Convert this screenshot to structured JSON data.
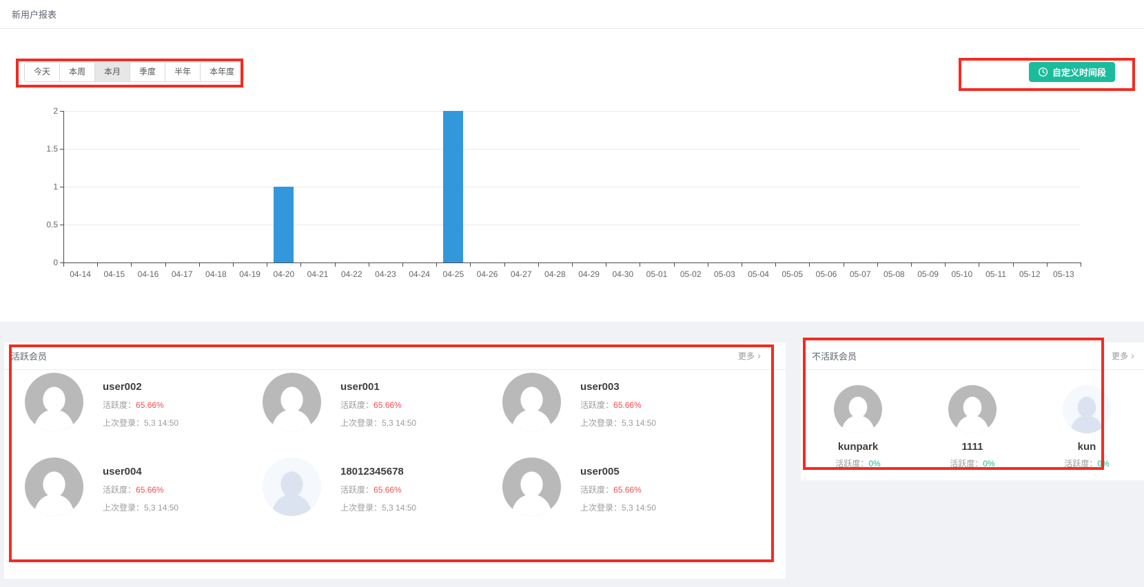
{
  "page": {
    "title": "新用户报表"
  },
  "annotation_color": "#f42b20",
  "icons": {
    "chevron_right": "›"
  },
  "avatar_colors": {
    "gray_bg": "#b9b9b9",
    "gray_fg": "#ffffff",
    "light_bg": "#f5f8fc",
    "light_fg": "#dce3f0"
  },
  "filters": {
    "tabs": [
      {
        "label": "今天",
        "active": false
      },
      {
        "label": "本周",
        "active": false
      },
      {
        "label": "本月",
        "active": true
      },
      {
        "label": "季度",
        "active": false
      },
      {
        "label": "半年",
        "active": false
      },
      {
        "label": "本年度",
        "active": false
      }
    ],
    "custom_range_button": {
      "label": "自定义时间段",
      "icon": "clock-icon",
      "color": "#1abc9c"
    }
  },
  "chart_data": {
    "type": "bar",
    "title": "",
    "categories": [
      "04-14",
      "04-15",
      "04-16",
      "04-17",
      "04-18",
      "04-19",
      "04-20",
      "04-21",
      "04-22",
      "04-23",
      "04-24",
      "04-25",
      "04-26",
      "04-27",
      "04-28",
      "04-29",
      "04-30",
      "05-01",
      "05-02",
      "05-03",
      "05-04",
      "05-05",
      "05-06",
      "05-07",
      "05-08",
      "05-09",
      "05-10",
      "05-11",
      "05-12",
      "05-13"
    ],
    "values": [
      0,
      0,
      0,
      0,
      0,
      0,
      1,
      0,
      0,
      0,
      0,
      2,
      0,
      0,
      0,
      0,
      0,
      0,
      0,
      0,
      0,
      0,
      0,
      0,
      0,
      0,
      0,
      0,
      0,
      0
    ],
    "xlabel": "",
    "ylabel": "",
    "ylim": [
      0,
      2
    ],
    "yticks": [
      0,
      0.5,
      1,
      1.5,
      2
    ],
    "bar_color": "#3398db",
    "grid": true,
    "legend": false
  },
  "active_members": {
    "title": "活跃会员",
    "more_label": "更多",
    "activity_label": "活跃度：",
    "last_login_label": "上次登录：",
    "activity_color": "#f34d4d",
    "members": [
      {
        "name": "user002",
        "activity": "65.66%",
        "last_login": "5,3 14:50",
        "avatar": "gray"
      },
      {
        "name": "user001",
        "activity": "65.66%",
        "last_login": "5,3 14:50",
        "avatar": "gray"
      },
      {
        "name": "user003",
        "activity": "65.66%",
        "last_login": "5,3 14:50",
        "avatar": "gray"
      },
      {
        "name": "user004",
        "activity": "65.66%",
        "last_login": "5,3 14:50",
        "avatar": "gray"
      },
      {
        "name": "18012345678",
        "activity": "65.66%",
        "last_login": "5,3 14:50",
        "avatar": "light"
      },
      {
        "name": "user005",
        "activity": "65.66%",
        "last_login": "5,3 14:50",
        "avatar": "gray"
      }
    ]
  },
  "inactive_members": {
    "title": "不活跃会员",
    "more_label": "更多",
    "activity_label": "活跃度：",
    "activity_color": "#1abc9c",
    "members": [
      {
        "name": "kunpark",
        "activity": "0%",
        "avatar": "gray"
      },
      {
        "name": "1111",
        "activity": "0%",
        "avatar": "gray"
      },
      {
        "name": "kun",
        "activity": "0%",
        "avatar": "light"
      }
    ]
  }
}
